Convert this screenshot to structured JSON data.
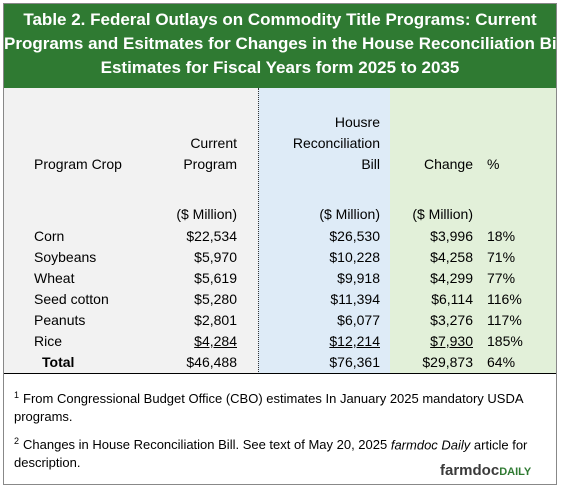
{
  "header": {
    "title_lines": [
      "Table 2. Federal Outlays on Commodity Title Programs:  Current",
      "Programs and Esitmates for Changes in the House Reconciliation Bill,",
      "Estimates for Fiscal Years form 2025 to 2035"
    ]
  },
  "table": {
    "columns": [
      [
        "Program Crop"
      ],
      [
        "Current",
        "Program"
      ],
      [
        "Housre",
        "Reconciliation",
        "Bill"
      ],
      [
        "Change"
      ],
      [
        "%"
      ]
    ],
    "units": [
      "($ Million)",
      "($ Million)",
      "($ Million)"
    ],
    "rows": [
      [
        "Corn",
        "$22,534",
        "$26,530",
        "$3,996",
        "18%"
      ],
      [
        "Soybeans",
        "$5,970",
        "$10,228",
        "$4,258",
        "71%"
      ],
      [
        "Wheat",
        "$5,619",
        "$9,918",
        "$4,299",
        "77%"
      ],
      [
        "Seed cotton",
        "$5,280",
        "$11,394",
        "$6,114",
        "116%"
      ],
      [
        "Peanuts",
        "$2,801",
        "$6,077",
        "$3,276",
        "117%"
      ],
      [
        "Rice",
        "$4,284",
        "$12,214",
        "$7,930",
        "185%"
      ]
    ],
    "total": [
      "Total",
      "$46,488",
      "$76,361",
      "$29,873",
      "64%"
    ]
  },
  "footnotes": [
    {
      "marker": "1",
      "text": "From Congressional Budget Office (CBO) estimates In January 2025 mandatory USDA programs."
    },
    {
      "marker": "2",
      "text_before": "Changes in House Reconciliation Bill. See text of May 20, 2025 ",
      "italic": "farmdoc Daily",
      "text_after": " article for description."
    }
  ],
  "logo": {
    "main": "farmdoc",
    "suffix": "DAILY"
  }
}
